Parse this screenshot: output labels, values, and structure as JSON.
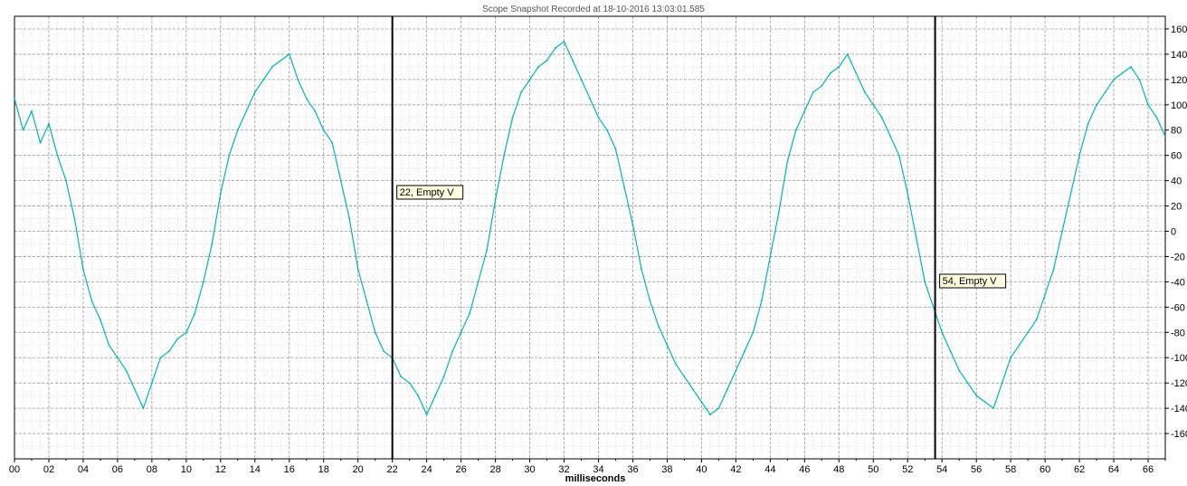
{
  "chart_data": {
    "type": "line",
    "title": "Scope Snapshot Recorded at 18-10-2016 13:03:01.585",
    "xlabel": "milliseconds",
    "ylabel": "",
    "xlim": [
      0,
      67
    ],
    "ylim": [
      -180,
      170
    ],
    "grid": true,
    "x_ticks": [
      {
        "value": 0,
        "label": "00"
      },
      {
        "value": 2,
        "label": "02"
      },
      {
        "value": 4,
        "label": "04"
      },
      {
        "value": 6,
        "label": "06"
      },
      {
        "value": 8,
        "label": "08"
      },
      {
        "value": 10,
        "label": "10"
      },
      {
        "value": 12,
        "label": "12"
      },
      {
        "value": 14,
        "label": "14"
      },
      {
        "value": 16,
        "label": "16"
      },
      {
        "value": 18,
        "label": "18"
      },
      {
        "value": 20,
        "label": "20"
      },
      {
        "value": 22,
        "label": "22"
      },
      {
        "value": 24,
        "label": "24"
      },
      {
        "value": 26,
        "label": "26"
      },
      {
        "value": 28,
        "label": "28"
      },
      {
        "value": 30,
        "label": "30"
      },
      {
        "value": 32,
        "label": "32"
      },
      {
        "value": 34,
        "label": "34"
      },
      {
        "value": 36,
        "label": "36"
      },
      {
        "value": 38,
        "label": "38"
      },
      {
        "value": 40,
        "label": "40"
      },
      {
        "value": 42,
        "label": "42"
      },
      {
        "value": 44,
        "label": "44"
      },
      {
        "value": 46,
        "label": "46"
      },
      {
        "value": 48,
        "label": "48"
      },
      {
        "value": 50,
        "label": "50"
      },
      {
        "value": 52,
        "label": "52"
      },
      {
        "value": 54,
        "label": "54"
      },
      {
        "value": 56,
        "label": "56"
      },
      {
        "value": 58,
        "label": "58"
      },
      {
        "value": 60,
        "label": "60"
      },
      {
        "value": 62,
        "label": "62"
      },
      {
        "value": 64,
        "label": "64"
      },
      {
        "value": 66,
        "label": "66"
      }
    ],
    "y_ticks": [
      {
        "value": 160,
        "label": "160"
      },
      {
        "value": 140,
        "label": "140"
      },
      {
        "value": 120,
        "label": "120"
      },
      {
        "value": 100,
        "label": "100"
      },
      {
        "value": 80,
        "label": "80"
      },
      {
        "value": 60,
        "label": "60"
      },
      {
        "value": 40,
        "label": "40"
      },
      {
        "value": 20,
        "label": "20"
      },
      {
        "value": 0,
        "label": "0"
      },
      {
        "value": -20,
        "label": "-20"
      },
      {
        "value": -40,
        "label": "-40"
      },
      {
        "value": -60,
        "label": "-60"
      },
      {
        "value": -80,
        "label": "-80"
      },
      {
        "value": -100,
        "label": "-100"
      },
      {
        "value": -120,
        "label": "-120"
      },
      {
        "value": -140,
        "label": "-140"
      },
      {
        "value": -160,
        "label": "-160"
      }
    ],
    "series": [
      {
        "color": "#00b4b4",
        "x": [
          0,
          0.5,
          1,
          1.5,
          2,
          2.5,
          3,
          3.5,
          4,
          4.5,
          5,
          5.5,
          6,
          6.5,
          7,
          7.5,
          8,
          8.5,
          9,
          9.5,
          10,
          10.5,
          11,
          11.5,
          12,
          12.5,
          13,
          13.5,
          14,
          14.5,
          15,
          15.5,
          16,
          16.5,
          17,
          17.5,
          18,
          18.5,
          19,
          19.5,
          20,
          20.5,
          21,
          21.5,
          22,
          22.5,
          23,
          23.5,
          24,
          24.5,
          25,
          25.5,
          26,
          26.5,
          27,
          27.5,
          28,
          28.5,
          29,
          29.5,
          30,
          30.5,
          31,
          31.5,
          32,
          32.5,
          33,
          33.5,
          34,
          34.5,
          35,
          35.5,
          36,
          36.5,
          37,
          37.5,
          38,
          38.5,
          39,
          39.5,
          40,
          40.5,
          41,
          41.5,
          42,
          42.5,
          43,
          43.5,
          44,
          44.5,
          45,
          45.5,
          46,
          46.5,
          47,
          47.5,
          48,
          48.5,
          49,
          49.5,
          50,
          50.5,
          51,
          51.5,
          52,
          52.5,
          53,
          53.5,
          54,
          54.5,
          55,
          55.5,
          56,
          56.5,
          57,
          57.5,
          58,
          58.5,
          59,
          59.5,
          60,
          60.5,
          61,
          61.5,
          62,
          62.5,
          63,
          63.5,
          64,
          64.5,
          65,
          65.5,
          66,
          66.5,
          67
        ],
        "y": [
          105,
          80,
          95,
          70,
          85,
          60,
          40,
          10,
          -30,
          -55,
          -70,
          -90,
          -100,
          -110,
          -125,
          -140,
          -120,
          -100,
          -95,
          -85,
          -80,
          -65,
          -40,
          -10,
          30,
          60,
          80,
          95,
          110,
          120,
          130,
          135,
          140,
          120,
          105,
          95,
          80,
          70,
          40,
          10,
          -30,
          -55,
          -80,
          -95,
          -100,
          -115,
          -120,
          -130,
          -145,
          -130,
          -115,
          -95,
          -80,
          -65,
          -40,
          -15,
          25,
          60,
          90,
          110,
          120,
          130,
          135,
          145,
          150,
          135,
          120,
          105,
          90,
          80,
          65,
          35,
          5,
          -30,
          -55,
          -75,
          -90,
          -105,
          -115,
          -125,
          -135,
          -145,
          -140,
          -125,
          -110,
          -95,
          -80,
          -55,
          -20,
          15,
          55,
          80,
          95,
          110,
          115,
          125,
          130,
          140,
          125,
          110,
          100,
          90,
          75,
          60,
          30,
          -5,
          -40,
          -60,
          -80,
          -95,
          -110,
          -120,
          -130,
          -135,
          -140,
          -120,
          -100,
          -90,
          -80,
          -70,
          -50,
          -30,
          0,
          30,
          60,
          85,
          100,
          110,
          120,
          125,
          130,
          120,
          100,
          90,
          75
        ]
      }
    ],
    "cursors": [
      {
        "x": 22,
        "label": "22, Empty V"
      },
      {
        "x": 53.6,
        "label": "54, Empty V"
      }
    ]
  }
}
